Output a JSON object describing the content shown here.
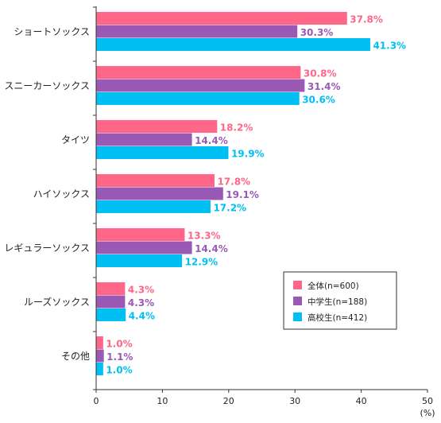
{
  "chart_data": {
    "type": "bar",
    "orientation": "horizontal",
    "categories": [
      "ショートソックス",
      "スニーカーソックス",
      "タイツ",
      "ハイソックス",
      "レギュラーソックス",
      "ルーズソックス",
      "その他"
    ],
    "series": [
      {
        "name": "全体(n=600)",
        "color": "#ff6688",
        "values": [
          37.8,
          30.8,
          18.2,
          17.8,
          13.3,
          4.3,
          1.0
        ],
        "labels": [
          "37.8%",
          "30.8%",
          "18.2%",
          "17.8%",
          "13.3%",
          "4.3%",
          "1.0%"
        ]
      },
      {
        "name": "中学生(n=188)",
        "color": "#9b59b6",
        "values": [
          30.3,
          31.4,
          14.4,
          19.1,
          14.4,
          4.3,
          1.1
        ],
        "labels": [
          "30.3%",
          "31.4%",
          "14.4%",
          "19.1%",
          "14.4%",
          "4.3%",
          "1.1%"
        ]
      },
      {
        "name": "高校生(n=412)",
        "color": "#00bff3",
        "values": [
          41.3,
          30.6,
          19.9,
          17.2,
          12.9,
          4.4,
          1.0
        ],
        "labels": [
          "41.3%",
          "30.6%",
          "19.9%",
          "17.2%",
          "12.9%",
          "4.4%",
          "1.0%"
        ]
      }
    ],
    "xlim": [
      0,
      50
    ],
    "xticks": [
      "0",
      "10",
      "20",
      "30",
      "40",
      "50"
    ],
    "x_unit": "(%)",
    "grid": false,
    "legend_position": "bottom-right"
  }
}
